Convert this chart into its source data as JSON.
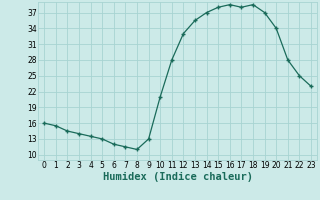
{
  "x": [
    0,
    1,
    2,
    3,
    4,
    5,
    6,
    7,
    8,
    9,
    10,
    11,
    12,
    13,
    14,
    15,
    16,
    17,
    18,
    19,
    20,
    21,
    22,
    23
  ],
  "y": [
    16,
    15.5,
    14.5,
    14,
    13.5,
    13,
    12,
    11.5,
    11,
    13,
    21,
    28,
    33,
    35.5,
    37,
    38,
    38.5,
    38,
    38.5,
    37,
    34,
    28,
    25,
    23
  ],
  "line_color": "#1a6b5a",
  "marker_color": "#1a6b5a",
  "bg_color": "#cceae8",
  "grid_color": "#a8d4d2",
  "xlabel": "Humidex (Indice chaleur)",
  "xlim": [
    -0.5,
    23.5
  ],
  "ylim": [
    9,
    39
  ],
  "yticks": [
    10,
    13,
    16,
    19,
    22,
    25,
    28,
    31,
    34,
    37
  ],
  "xticks": [
    0,
    1,
    2,
    3,
    4,
    5,
    6,
    7,
    8,
    9,
    10,
    11,
    12,
    13,
    14,
    15,
    16,
    17,
    18,
    19,
    20,
    21,
    22,
    23
  ],
  "tick_fontsize": 5.5,
  "xlabel_fontsize": 7.5
}
